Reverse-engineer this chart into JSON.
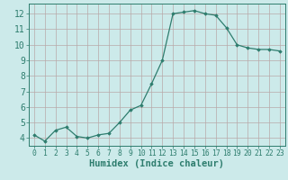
{
  "x": [
    0,
    1,
    2,
    3,
    4,
    5,
    6,
    7,
    8,
    9,
    10,
    11,
    12,
    13,
    14,
    15,
    16,
    17,
    18,
    19,
    20,
    21,
    22,
    23
  ],
  "y": [
    4.2,
    3.8,
    4.5,
    4.7,
    4.1,
    4.0,
    4.2,
    4.3,
    5.0,
    5.8,
    6.1,
    7.5,
    9.0,
    12.0,
    12.1,
    12.2,
    12.0,
    11.9,
    11.1,
    10.0,
    9.8,
    9.7,
    9.7,
    9.6
  ],
  "line_color": "#2e7d6e",
  "marker": "D",
  "marker_size": 1.8,
  "bg_color": "#cceaea",
  "grid_color": "#b8a8a8",
  "xlabel": "Humidex (Indice chaleur)",
  "xlabel_color": "#2e7d6e",
  "ylim": [
    3.5,
    12.65
  ],
  "xlim": [
    -0.5,
    23.5
  ],
  "yticks": [
    4,
    5,
    6,
    7,
    8,
    9,
    10,
    11,
    12
  ],
  "xticks": [
    0,
    1,
    2,
    3,
    4,
    5,
    6,
    7,
    8,
    9,
    10,
    11,
    12,
    13,
    14,
    15,
    16,
    17,
    18,
    19,
    20,
    21,
    22,
    23
  ],
  "tick_color": "#2e7d6e",
  "ytick_labelsize": 7,
  "xtick_labelsize": 5.8,
  "xlabel_fontsize": 7.5,
  "linewidth": 0.9
}
